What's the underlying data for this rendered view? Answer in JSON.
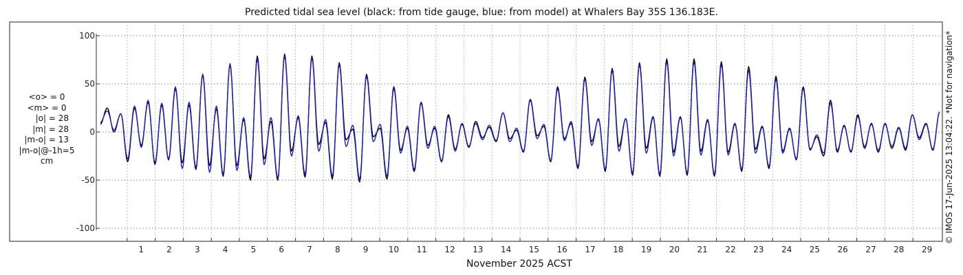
{
  "chart_data": {
    "type": "line",
    "title": "Predicted tidal sea level (black: from tide gauge, blue: from model) at Whalers Bay 35S 136.183E.",
    "xlabel": "November 2025 ACST",
    "ylabel": "",
    "xlim": [
      0,
      30
    ],
    "ylim": [
      -105,
      105
    ],
    "yticks": [
      100,
      50,
      0,
      -50,
      -100
    ],
    "yticklabels": [
      "100",
      "50",
      "0",
      "-50",
      "-100"
    ],
    "xticks": [
      1,
      2,
      3,
      4,
      5,
      6,
      7,
      8,
      9,
      10,
      11,
      12,
      13,
      14,
      15,
      16,
      17,
      18,
      19,
      20,
      21,
      22,
      23,
      24,
      25,
      26,
      27,
      28,
      29
    ],
    "xticklabels": [
      "1",
      "2",
      "3",
      "4",
      "5",
      "6",
      "7",
      "8",
      "9",
      "10",
      "11",
      "12",
      "13",
      "14",
      "15",
      "16",
      "17",
      "18",
      "19",
      "20",
      "21",
      "22",
      "23",
      "24",
      "25",
      "26",
      "27",
      "28",
      "29"
    ],
    "grid": true,
    "series": [
      {
        "color": "#000000",
        "peaks": [
          25,
          19,
          25,
          31,
          28,
          45,
          28,
          60,
          24,
          71,
          13,
          79,
          11,
          81,
          15,
          79,
          10,
          72,
          3,
          60,
          4,
          47,
          4,
          31,
          4,
          18,
          8,
          11,
          5,
          20,
          2,
          34,
          6,
          47,
          9,
          57,
          13,
          66,
          14,
          72,
          16,
          76,
          16,
          76,
          13,
          73,
          9,
          68,
          6,
          58,
          4,
          47,
          -5,
          33,
          7,
          18,
          9,
          9,
          4,
          18,
          9,
          21
        ],
        "troughs": [
          0,
          -31,
          -14,
          -32,
          -29,
          -32,
          -39,
          -35,
          -46,
          -35,
          -50,
          -28,
          -50,
          -20,
          -47,
          -13,
          -49,
          -8,
          -52,
          -5,
          -49,
          -19,
          -41,
          -14,
          -31,
          -18,
          -16,
          -6,
          -10,
          -7,
          -21,
          -4,
          -31,
          -7,
          -38,
          -10,
          -41,
          -15,
          -45,
          -17,
          -46,
          -21,
          -45,
          -20,
          -46,
          -21,
          -41,
          -18,
          -38,
          -20,
          -29,
          -18,
          -25,
          -21,
          -21,
          -17,
          -21,
          -17,
          -19,
          -6,
          -19
        ]
      },
      {
        "color": "#1f1fbf",
        "peaks": [
          22,
          19,
          27,
          33,
          30,
          47,
          31,
          59,
          27,
          70,
          15,
          76,
          15,
          79,
          17,
          77,
          13,
          70,
          7,
          58,
          8,
          45,
          6,
          30,
          6,
          16,
          9,
          9,
          7,
          20,
          4,
          33,
          8,
          45,
          11,
          55,
          14,
          64,
          14,
          70,
          15,
          73,
          15,
          73,
          12,
          70,
          8,
          64,
          5,
          55,
          3,
          45,
          -3,
          30,
          6,
          16,
          8,
          8,
          5,
          18,
          8,
          21
        ],
        "troughs": [
          2,
          -28,
          -16,
          -34,
          -28,
          -38,
          -37,
          -42,
          -44,
          -40,
          -47,
          -34,
          -48,
          -25,
          -44,
          -20,
          -46,
          -15,
          -49,
          -10,
          -46,
          -22,
          -39,
          -17,
          -30,
          -20,
          -15,
          -8,
          -9,
          -10,
          -20,
          -7,
          -30,
          -9,
          -36,
          -14,
          -39,
          -20,
          -43,
          -22,
          -44,
          -25,
          -43,
          -24,
          -44,
          -24,
          -39,
          -22,
          -36,
          -22,
          -28,
          -19,
          -22,
          -19,
          -20,
          -15,
          -19,
          -15,
          -17,
          -8,
          -18
        ]
      }
    ]
  },
  "stats": {
    "obs_mean": "<o> = 0",
    "model_mean": "<m> = 0",
    "obs_abs": "|o| = 28",
    "model_abs": "|m| = 28",
    "diff": "|m-o| = 13",
    "diff_lag": "|m-o|@-1h=5",
    "unit": "cm"
  },
  "credit": "© IMOS 17-Jun-2025 13:04:22. *Not for navigation*"
}
